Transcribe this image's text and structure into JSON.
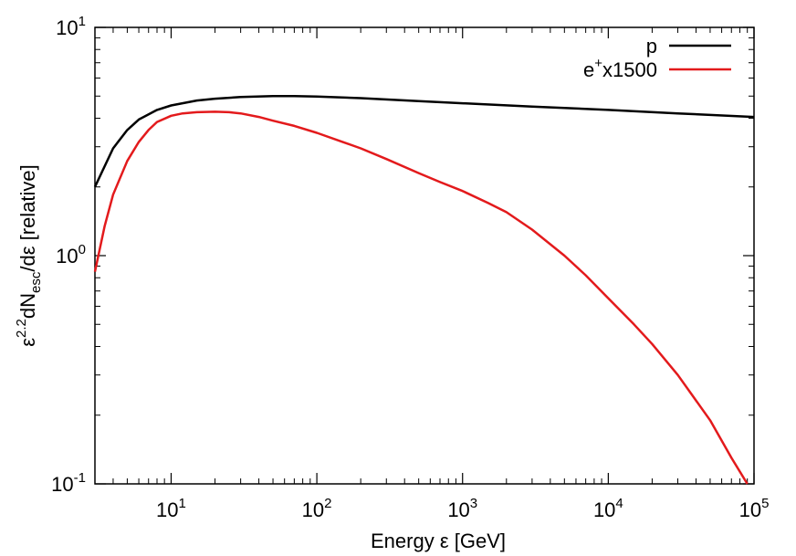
{
  "chart_data": {
    "type": "line",
    "xscale": "log",
    "yscale": "log",
    "xlim": [
      3,
      100000
    ],
    "ylim": [
      0.1,
      10
    ],
    "grid": false,
    "legend_position": "top-right",
    "xlabel": "Energy ε [GeV]",
    "ylabel_parts": {
      "eps": "ε",
      "exp": "2.2",
      "mid": "dN",
      "sub": "esc",
      "tail": "/dε  [relative]"
    },
    "x_ticks": [
      {
        "base": "10",
        "exp": "1",
        "value": 10
      },
      {
        "base": "10",
        "exp": "2",
        "value": 100
      },
      {
        "base": "10",
        "exp": "3",
        "value": 1000
      },
      {
        "base": "10",
        "exp": "4",
        "value": 10000
      },
      {
        "base": "10",
        "exp": "5",
        "value": 100000
      }
    ],
    "y_ticks": [
      {
        "base": "10",
        "exp": "-1",
        "value": 0.1
      },
      {
        "base": "10",
        "exp": "0",
        "value": 1
      },
      {
        "base": "10",
        "exp": "1",
        "value": 10
      }
    ],
    "series": [
      {
        "name": "p",
        "color": "#000000",
        "points": [
          [
            3,
            2.0
          ],
          [
            4,
            2.95
          ],
          [
            5,
            3.55
          ],
          [
            6,
            3.95
          ],
          [
            8,
            4.35
          ],
          [
            10,
            4.55
          ],
          [
            15,
            4.78
          ],
          [
            20,
            4.87
          ],
          [
            30,
            4.95
          ],
          [
            50,
            5.0
          ],
          [
            70,
            5.0
          ],
          [
            100,
            4.98
          ],
          [
            200,
            4.9
          ],
          [
            500,
            4.75
          ],
          [
            1000,
            4.65
          ],
          [
            3000,
            4.5
          ],
          [
            10000,
            4.35
          ],
          [
            30000,
            4.2
          ],
          [
            100000,
            4.05
          ]
        ]
      },
      {
        "name": "e",
        "name_sup": "+",
        "name_rest": "x1500",
        "color": "#e31a1c",
        "points": [
          [
            3,
            0.85
          ],
          [
            3.5,
            1.35
          ],
          [
            4,
            1.85
          ],
          [
            5,
            2.6
          ],
          [
            6,
            3.15
          ],
          [
            7,
            3.55
          ],
          [
            8,
            3.85
          ],
          [
            10,
            4.1
          ],
          [
            12,
            4.2
          ],
          [
            15,
            4.25
          ],
          [
            20,
            4.27
          ],
          [
            25,
            4.25
          ],
          [
            30,
            4.2
          ],
          [
            40,
            4.05
          ],
          [
            50,
            3.9
          ],
          [
            70,
            3.7
          ],
          [
            100,
            3.45
          ],
          [
            150,
            3.15
          ],
          [
            200,
            2.95
          ],
          [
            300,
            2.65
          ],
          [
            500,
            2.3
          ],
          [
            700,
            2.1
          ],
          [
            1000,
            1.92
          ],
          [
            1500,
            1.7
          ],
          [
            2000,
            1.55
          ],
          [
            3000,
            1.3
          ],
          [
            5000,
            1.0
          ],
          [
            7000,
            0.82
          ],
          [
            10000,
            0.65
          ],
          [
            15000,
            0.5
          ],
          [
            20000,
            0.41
          ],
          [
            30000,
            0.3
          ],
          [
            50000,
            0.19
          ],
          [
            70000,
            0.13
          ],
          [
            90000,
            0.1
          ]
        ]
      }
    ]
  }
}
